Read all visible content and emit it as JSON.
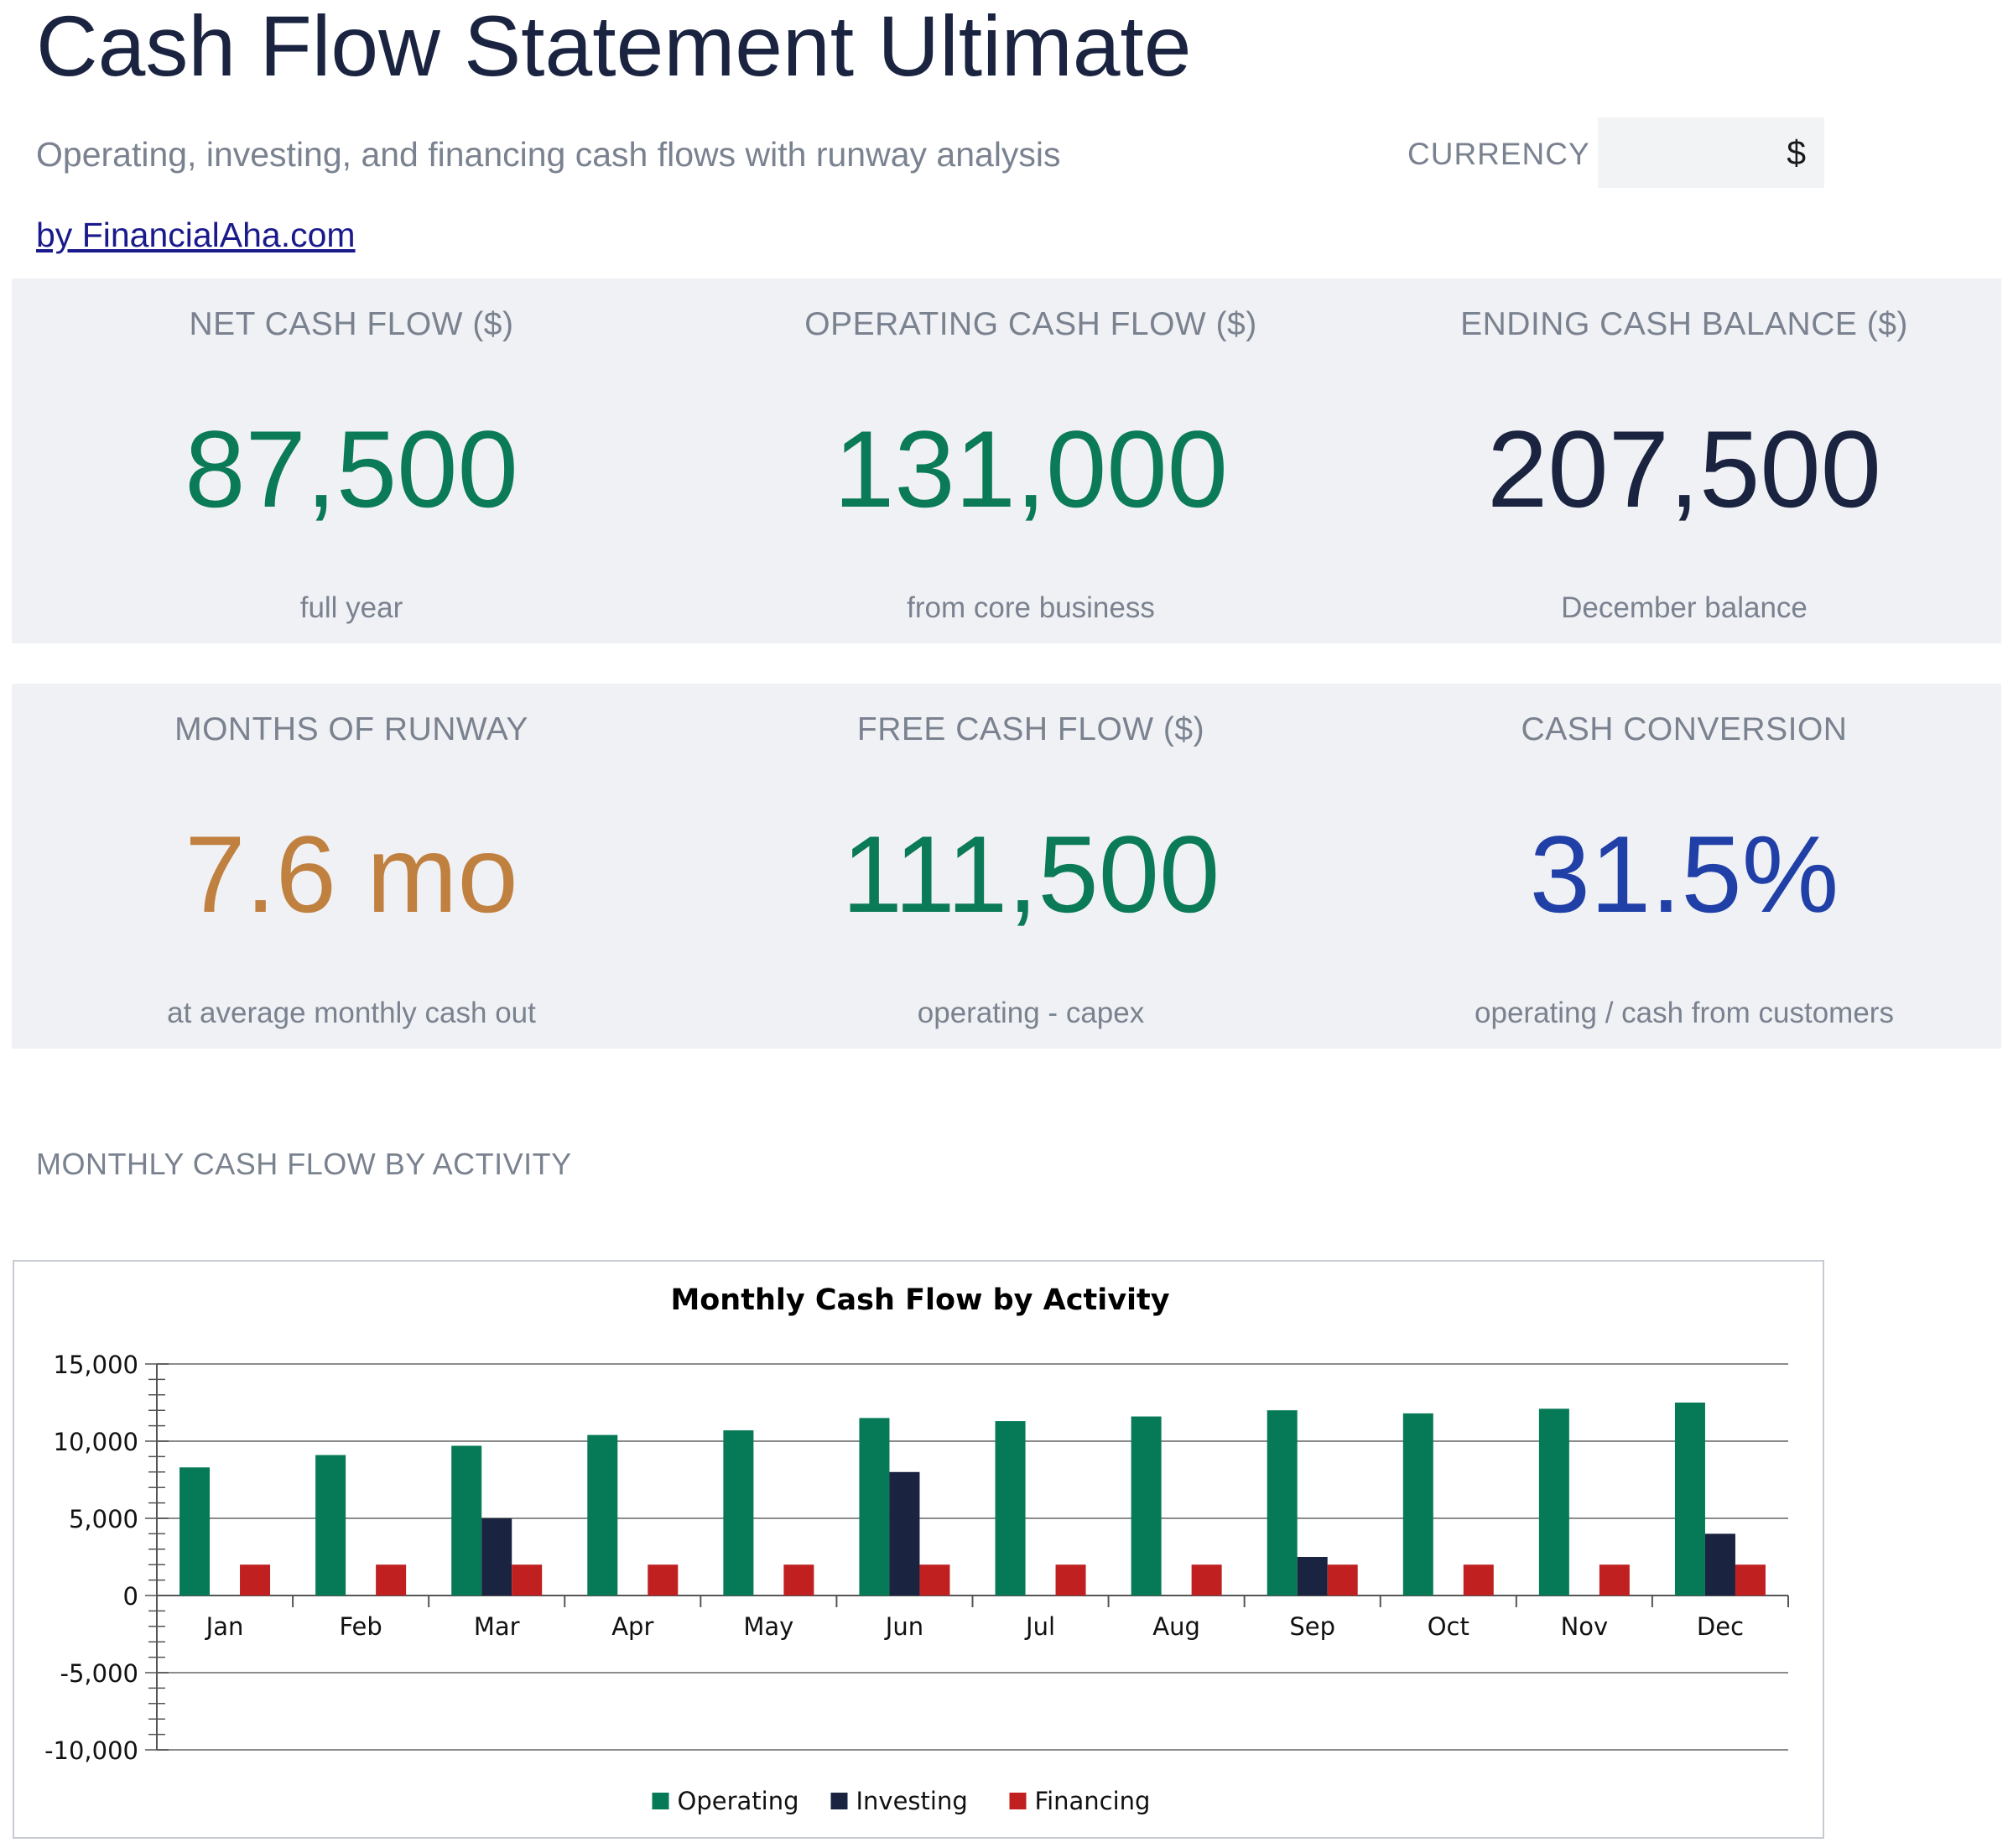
{
  "header": {
    "title": "Cash Flow Statement Ultimate",
    "subtitle": "Operating, investing, and financing cash flows with runway analysis",
    "byline": "by FinancialAha.com",
    "currency_label": "CURRENCY",
    "currency_value": "$"
  },
  "kpis_row1": [
    {
      "label": "NET CASH FLOW ($)",
      "value": "87,500",
      "sub": "full year",
      "color": "#0b7a56"
    },
    {
      "label": "OPERATING CASH FLOW ($)",
      "value": "131,000",
      "sub": "from core business",
      "color": "#0b7a56"
    },
    {
      "label": "ENDING CASH BALANCE ($)",
      "value": "207,500",
      "sub": "December balance",
      "color": "#1a2440"
    }
  ],
  "kpis_row2": [
    {
      "label": "MONTHS OF RUNWAY",
      "value": "7.6 mo",
      "sub": "at average monthly cash out",
      "color": "#c08040"
    },
    {
      "label": "FREE CASH FLOW ($)",
      "value": "111,500",
      "sub": "operating - capex",
      "color": "#0b7a56"
    },
    {
      "label": "CASH CONVERSION",
      "value": "31.5%",
      "sub": "operating / cash from customers",
      "color": "#2040a8"
    }
  ],
  "section": {
    "chart_label": "MONTHLY CASH FLOW BY ACTIVITY"
  },
  "chart_data": {
    "type": "bar",
    "title": "Monthly Cash Flow by Activity",
    "categories": [
      "Jan",
      "Feb",
      "Mar",
      "Apr",
      "May",
      "Jun",
      "Jul",
      "Aug",
      "Sep",
      "Oct",
      "Nov",
      "Dec"
    ],
    "series": [
      {
        "name": "Operating",
        "color": "#067a56",
        "values": [
          8300,
          9100,
          9700,
          10400,
          10700,
          11500,
          11300,
          11600,
          12000,
          11800,
          12100,
          12500
        ]
      },
      {
        "name": "Investing",
        "color": "#1a2440",
        "values": [
          0,
          0,
          5000,
          0,
          0,
          8000,
          0,
          0,
          2500,
          0,
          0,
          4000
        ]
      },
      {
        "name": "Financing",
        "color": "#c02020",
        "values": [
          2000,
          2000,
          2000,
          2000,
          2000,
          2000,
          2000,
          2000,
          2000,
          2000,
          2000,
          2000
        ]
      }
    ],
    "ylim": [
      -10000,
      15000
    ],
    "yticks": [
      15000,
      10000,
      5000,
      0,
      -5000,
      -10000
    ],
    "ytick_labels": [
      "15,000",
      "10,000",
      "5,000",
      "0",
      "-5,000",
      "-10,000"
    ],
    "grid": true,
    "legend": "bottom-center",
    "xlabel": "",
    "ylabel": ""
  }
}
